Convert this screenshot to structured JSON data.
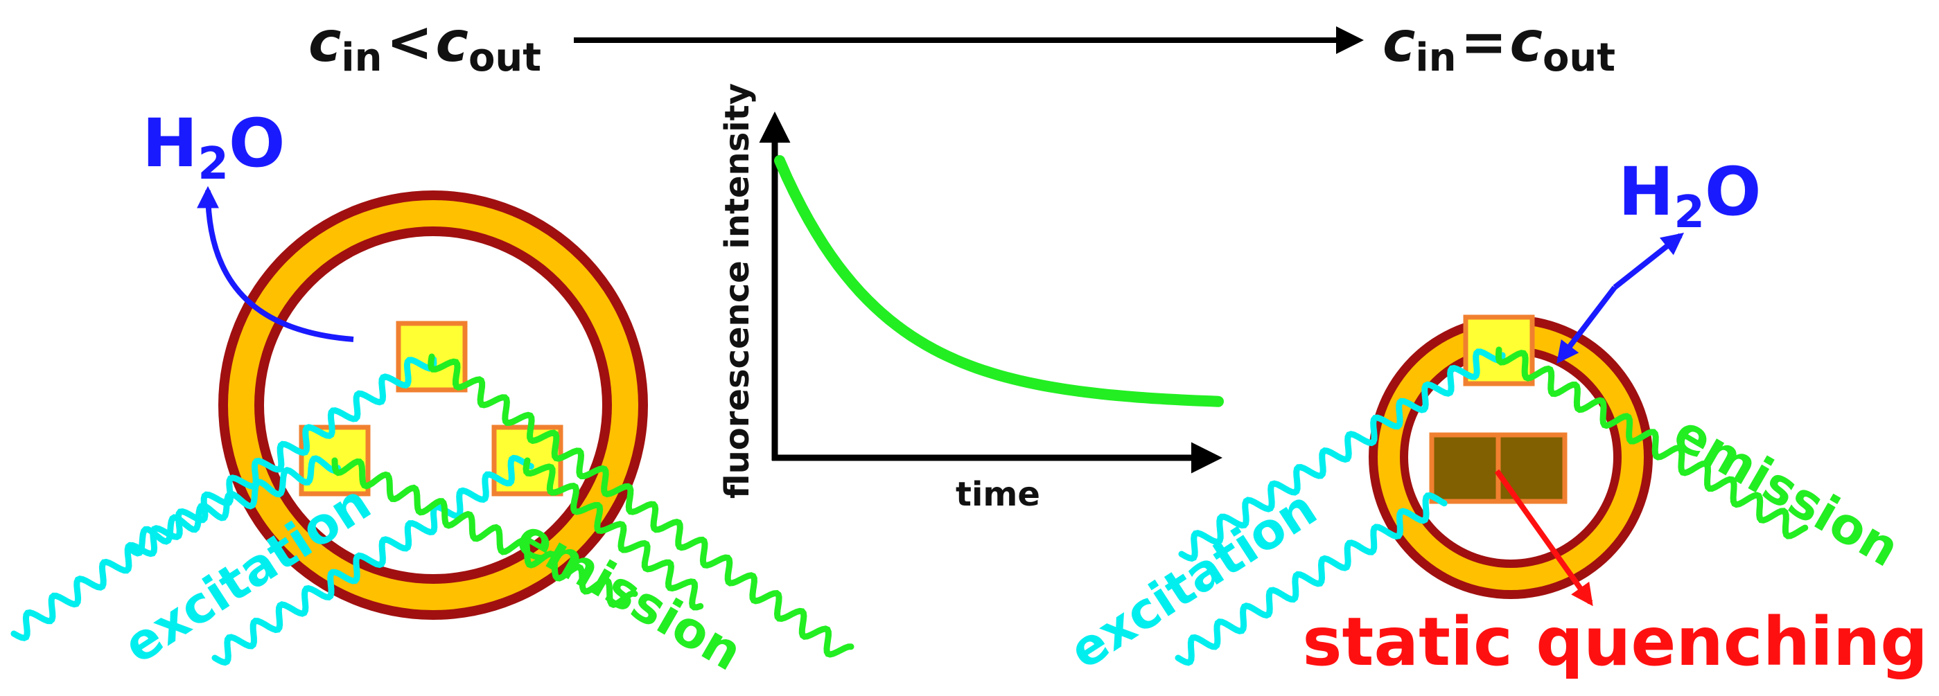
{
  "header": {
    "left_c": "c",
    "left_sub_in": "in",
    "left_op": "<",
    "left_c2": "c",
    "left_sub_out": "out",
    "right_c": "c",
    "right_sub_in": "in",
    "right_op": "=",
    "right_c2": "c",
    "right_sub_out": "out"
  },
  "left_vesicle": {
    "water_H": "H",
    "water_sub": "2",
    "water_O": "O",
    "excitation_label": "excitation",
    "emission_label": "emission"
  },
  "graph": {
    "y_label": "fluorescence intensity",
    "x_label": "time"
  },
  "right_vesicle": {
    "water_H": "H",
    "water_sub": "2",
    "water_O": "O",
    "excitation_label": "excitation",
    "emission_label": "emission",
    "quenching_label": "static quenching"
  },
  "colors": {
    "membrane_outer": "#a01010",
    "membrane_fill": "#ffc000",
    "dye_fill": "#ffff33",
    "dye_border": "#f08030",
    "dimer_fill": "#806000",
    "excitation": "#00eeee",
    "emission": "#22ee22",
    "water": "#1a1aff",
    "quenching": "#ff1010",
    "curve": "#22ee22"
  }
}
